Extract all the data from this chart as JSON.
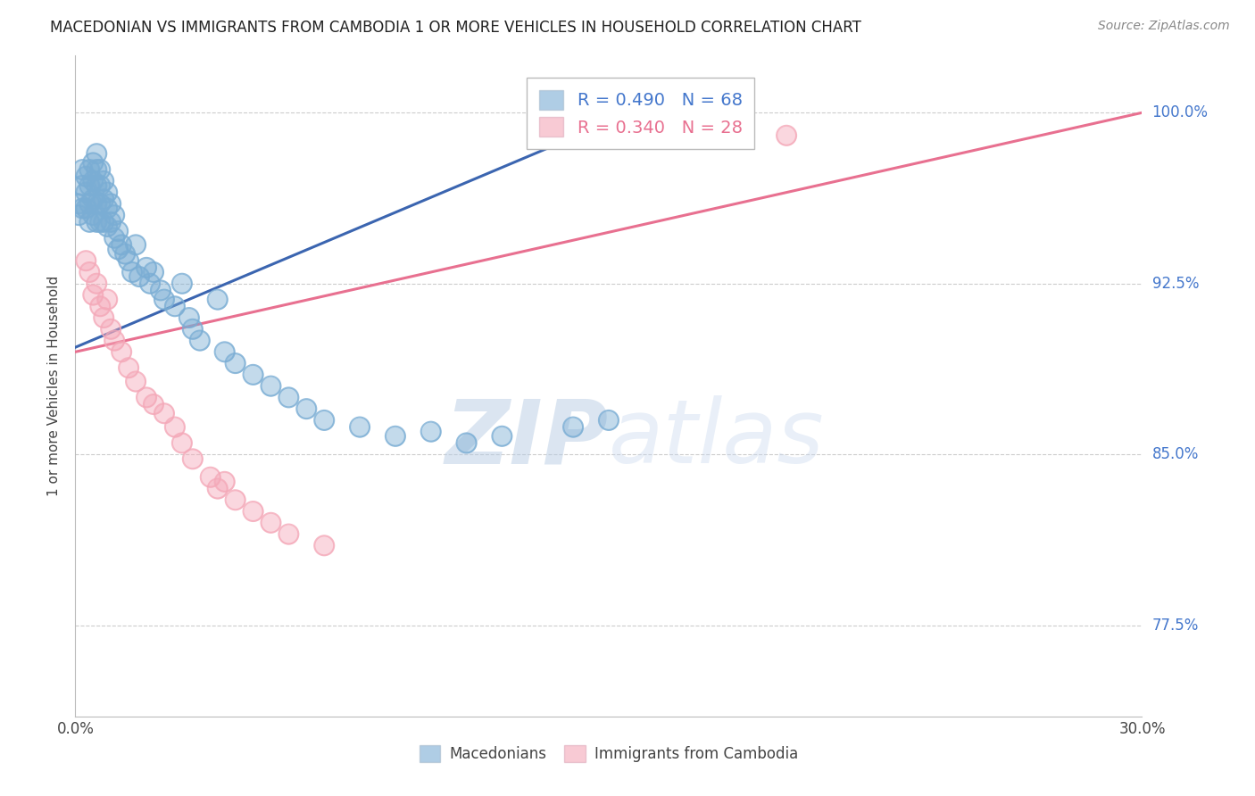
{
  "title": "MACEDONIAN VS IMMIGRANTS FROM CAMBODIA 1 OR MORE VEHICLES IN HOUSEHOLD CORRELATION CHART",
  "source": "Source: ZipAtlas.com",
  "ylabel": "1 or more Vehicles in Household",
  "xmin": 0.0,
  "xmax": 0.3,
  "ymin": 0.735,
  "ymax": 1.025,
  "yticks": [
    0.775,
    0.85,
    0.925,
    1.0
  ],
  "ytick_labels": [
    "77.5%",
    "85.0%",
    "92.5%",
    "100.0%"
  ],
  "xticks": [
    0.0,
    0.05,
    0.1,
    0.15,
    0.2,
    0.25,
    0.3
  ],
  "xtick_labels": [
    "0.0%",
    "",
    "",
    "",
    "",
    "",
    "30.0%"
  ],
  "blue_R": 0.49,
  "blue_N": 68,
  "pink_R": 0.34,
  "pink_N": 28,
  "blue_color": "#7AADD4",
  "pink_color": "#F4A8B8",
  "blue_line_color": "#3B65B0",
  "pink_line_color": "#E87090",
  "blue_scatter_x": [
    0.001,
    0.001,
    0.002,
    0.002,
    0.002,
    0.003,
    0.003,
    0.003,
    0.004,
    0.004,
    0.004,
    0.004,
    0.005,
    0.005,
    0.005,
    0.005,
    0.006,
    0.006,
    0.006,
    0.006,
    0.006,
    0.007,
    0.007,
    0.007,
    0.007,
    0.008,
    0.008,
    0.008,
    0.009,
    0.009,
    0.009,
    0.01,
    0.01,
    0.011,
    0.011,
    0.012,
    0.012,
    0.013,
    0.014,
    0.015,
    0.016,
    0.017,
    0.018,
    0.02,
    0.021,
    0.022,
    0.024,
    0.025,
    0.028,
    0.03,
    0.032,
    0.033,
    0.035,
    0.04,
    0.042,
    0.045,
    0.05,
    0.055,
    0.06,
    0.065,
    0.07,
    0.08,
    0.09,
    0.1,
    0.11,
    0.12,
    0.14,
    0.15
  ],
  "blue_scatter_y": [
    0.96,
    0.955,
    0.975,
    0.968,
    0.958,
    0.972,
    0.965,
    0.958,
    0.975,
    0.968,
    0.96,
    0.952,
    0.978,
    0.97,
    0.962,
    0.955,
    0.982,
    0.975,
    0.968,
    0.96,
    0.952,
    0.975,
    0.968,
    0.96,
    0.952,
    0.97,
    0.962,
    0.952,
    0.965,
    0.958,
    0.95,
    0.96,
    0.952,
    0.955,
    0.945,
    0.948,
    0.94,
    0.942,
    0.938,
    0.935,
    0.93,
    0.942,
    0.928,
    0.932,
    0.925,
    0.93,
    0.922,
    0.918,
    0.915,
    0.925,
    0.91,
    0.905,
    0.9,
    0.918,
    0.895,
    0.89,
    0.885,
    0.88,
    0.875,
    0.87,
    0.865,
    0.862,
    0.858,
    0.86,
    0.855,
    0.858,
    0.862,
    0.865
  ],
  "pink_scatter_x": [
    0.003,
    0.004,
    0.005,
    0.006,
    0.007,
    0.008,
    0.009,
    0.01,
    0.011,
    0.013,
    0.015,
    0.017,
    0.02,
    0.022,
    0.025,
    0.028,
    0.03,
    0.033,
    0.038,
    0.04,
    0.042,
    0.045,
    0.05,
    0.055,
    0.06,
    0.07,
    0.185,
    0.2
  ],
  "pink_scatter_y": [
    0.935,
    0.93,
    0.92,
    0.925,
    0.915,
    0.91,
    0.918,
    0.905,
    0.9,
    0.895,
    0.888,
    0.882,
    0.875,
    0.872,
    0.868,
    0.862,
    0.855,
    0.848,
    0.84,
    0.835,
    0.838,
    0.83,
    0.825,
    0.82,
    0.815,
    0.81,
    0.998,
    0.99
  ],
  "blue_line_x": [
    0.0,
    0.155
  ],
  "blue_line_y": [
    0.897,
    0.999
  ],
  "pink_line_x": [
    0.0,
    0.3
  ],
  "pink_line_y": [
    0.895,
    1.0
  ],
  "watermark_zip": "ZIP",
  "watermark_atlas": "atlas",
  "watermark_color": "#C8D8EE",
  "background_color": "#FFFFFF"
}
